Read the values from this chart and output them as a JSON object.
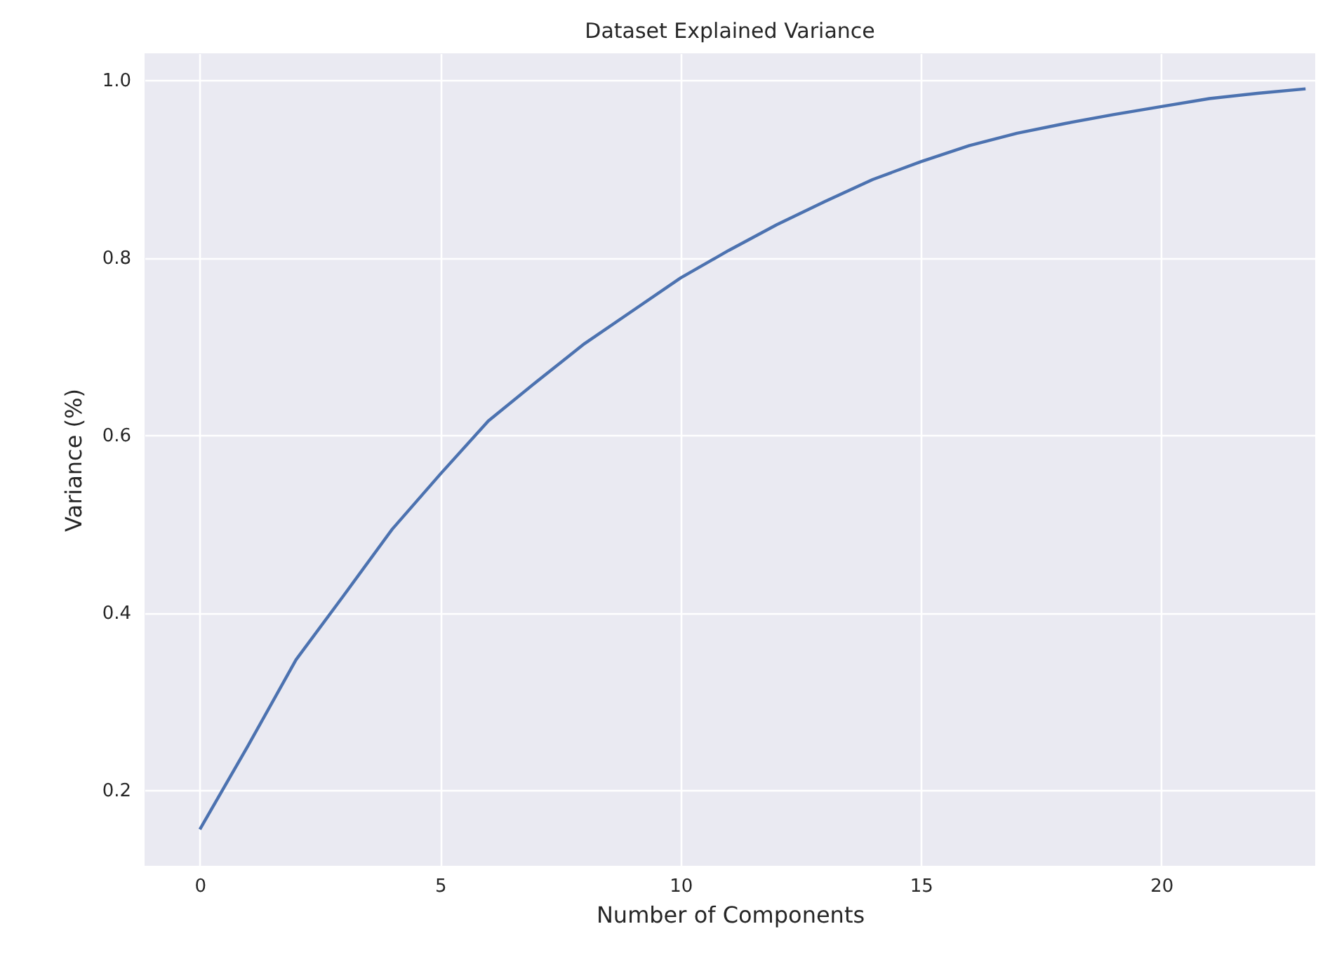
{
  "chart_data": {
    "type": "line",
    "title": "Dataset Explained Variance",
    "xlabel": "Number of Components",
    "ylabel": "Variance (%)",
    "x": [
      0,
      1,
      2,
      3,
      4,
      5,
      6,
      7,
      8,
      9,
      10,
      11,
      12,
      13,
      14,
      15,
      16,
      17,
      18,
      19,
      20,
      21,
      22,
      23
    ],
    "series": [
      {
        "color": "#4c72b0",
        "values": [
          0.156,
          0.25,
          0.347,
          0.42,
          0.494,
          0.556,
          0.616,
          0.66,
          0.703,
          0.74,
          0.777,
          0.808,
          0.837,
          0.863,
          0.888,
          0.908,
          0.926,
          0.94,
          0.951,
          0.961,
          0.97,
          0.979,
          0.985,
          0.99
        ]
      }
    ],
    "xlim": [
      -1.15,
      23.2
    ],
    "ylim": [
      0.115,
      1.03
    ],
    "xticks": [
      0,
      5,
      10,
      15,
      20
    ],
    "yticks": [
      {
        "value": 0.2,
        "label": "0.2"
      },
      {
        "value": 0.4,
        "label": "0.4"
      },
      {
        "value": 0.6,
        "label": "0.6"
      },
      {
        "value": 0.8,
        "label": "0.8"
      },
      {
        "value": 1.0,
        "label": "1.0"
      }
    ],
    "grid": true
  }
}
